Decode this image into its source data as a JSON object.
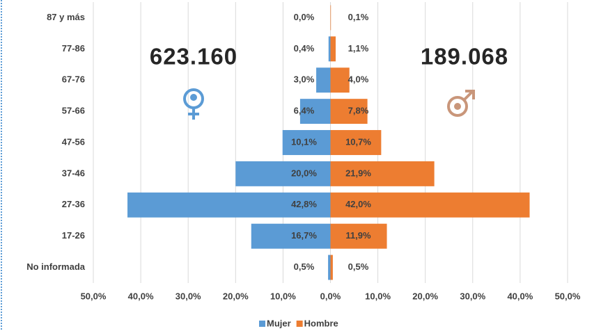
{
  "chart_data": {
    "type": "bar",
    "orientation": "horizontal",
    "categories": [
      "87 y más",
      "77-86",
      "67-76",
      "57-66",
      "47-56",
      "37-46",
      "27-36",
      "17-26",
      "No informada"
    ],
    "series": [
      {
        "name": "Mujer",
        "color": "#5b9bd5",
        "values": [
          0,
          -0.4,
          -3.0,
          -6.4,
          -10.1,
          -20.0,
          -42.8,
          -16.7,
          -0.5
        ],
        "value_labels": [
          "0,0%",
          "0,4%",
          "3,0%",
          "6,4%",
          "10,1%",
          "20,0%",
          "42,8%",
          "16,7%",
          "0,5%"
        ]
      },
      {
        "name": "Hombre",
        "color": "#ed7d31",
        "values": [
          0.1,
          1.1,
          4.0,
          7.8,
          10.7,
          21.9,
          42.0,
          11.9,
          0.5
        ],
        "value_labels": [
          "0,1%",
          "1,1%",
          "4,0%",
          "7,8%",
          "10,7%",
          "21,9%",
          "42,0%",
          "11,9%",
          "0,5%"
        ]
      }
    ],
    "xlim": [
      -50,
      50
    ],
    "xticks": [
      {
        "value": -50,
        "label": "50,0%"
      },
      {
        "value": -40,
        "label": "40,0%"
      },
      {
        "value": -30,
        "label": "30,0%"
      },
      {
        "value": -20,
        "label": "20,0%"
      },
      {
        "value": -10,
        "label": "10,0%"
      },
      {
        "value": 0,
        "label": "0,0%"
      },
      {
        "value": 10,
        "label": "10,0%"
      },
      {
        "value": 20,
        "label": "20,0%"
      },
      {
        "value": 30,
        "label": "30,0%"
      },
      {
        "value": 40,
        "label": "40,0%"
      },
      {
        "value": 50,
        "label": "50,0%"
      }
    ],
    "grid": true,
    "legend": "bottom",
    "annotations": [
      "623.160",
      "189.068"
    ]
  }
}
